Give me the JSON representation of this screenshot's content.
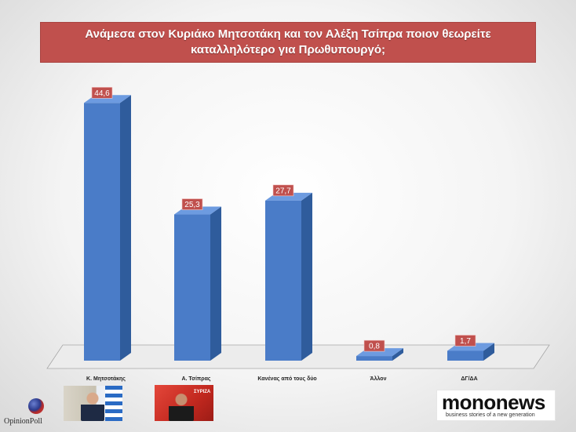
{
  "title": "Ανάμεσα στον Κυριάκο Μητσοτάκη και τον Αλέξη Τσίπρα ποιον θεωρείτε καταλληλότερο για Πρωθυπουργό;",
  "chart_data": {
    "type": "bar",
    "style": "3d-column",
    "title": "Ανάμεσα στον Κυριάκο Μητσοτάκη και τον Αλέξη Τσίπρα ποιον θεωρείτε καταλληλότερο για Πρωθυπουργό;",
    "categories": [
      "Κ. Μητσοτάκης",
      "Α. Τσίπρας",
      "Κανένας από τους δύο",
      "Άλλον",
      "ΔΓ/ΔΑ"
    ],
    "values": [
      44.6,
      25.3,
      27.7,
      0.8,
      1.7
    ],
    "value_labels": [
      "44,6",
      "25,3",
      "27,7",
      "0,8",
      "1,7"
    ],
    "ylim": [
      0,
      50
    ],
    "grid": false,
    "bar_color": "#4a7cc8",
    "label_color": "#c0504d"
  },
  "logos": {
    "opinion_poll": "OpinionPoll",
    "mononews_word": "mononews",
    "mononews_tagline": "business stories of a new generation",
    "photo2_tag": "ΣΥΡΙΖΑ"
  },
  "colors": {
    "title_bg": "#c0504d",
    "bar": "#4a7cc8",
    "value_label_bg": "#c0504d"
  }
}
